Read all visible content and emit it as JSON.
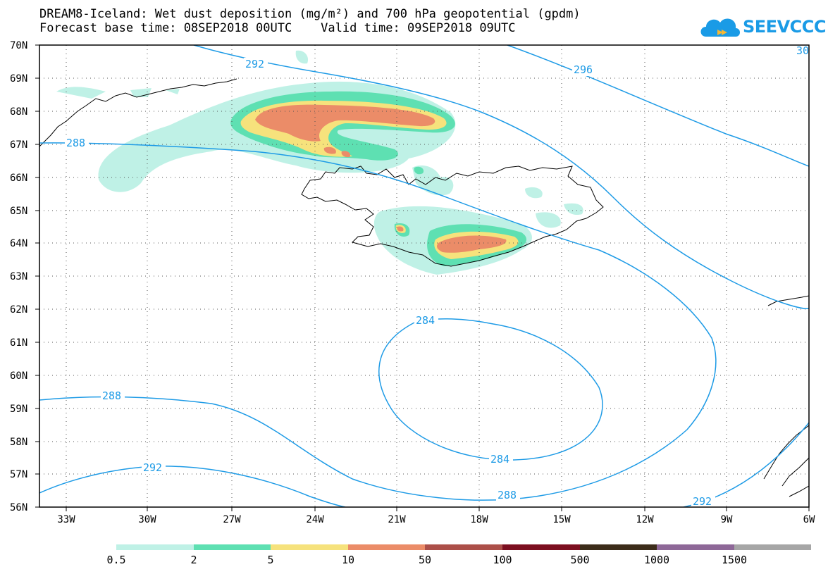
{
  "title_line1": "DREAM8-Iceland: Wet dust deposition (mg/m²) and 700 hPa geopotential (gpdm)",
  "title_line2": "Forecast base time: 08SEP2018 00UTC    Valid time: 09SEP2018 09UTC",
  "logo_text": "SEEVCCC",
  "lat_labels": [
    "70N",
    "69N",
    "68N",
    "67N",
    "66N",
    "65N",
    "64N",
    "63N",
    "62N",
    "61N",
    "60N",
    "59N",
    "58N",
    "57N",
    "56N"
  ],
  "lon_labels": [
    "33W",
    "30W",
    "27W",
    "24W",
    "21W",
    "18W",
    "15W",
    "12W",
    "9W",
    "6W"
  ],
  "contour_labels": [
    "292",
    "296",
    "30",
    "288",
    "284",
    "284",
    "288",
    "288",
    "292",
    "292"
  ],
  "legend": {
    "colors": [
      "#bff1e6",
      "#5ee0b2",
      "#f6e27c",
      "#eb8c68",
      "#ac4f49",
      "#7c0f20",
      "#3c2c1a",
      "#8e6898",
      "#a6a6a6"
    ],
    "labels": [
      "0.5",
      "2",
      "5",
      "10",
      "50",
      "100",
      "500",
      "1000",
      "1500"
    ]
  }
}
